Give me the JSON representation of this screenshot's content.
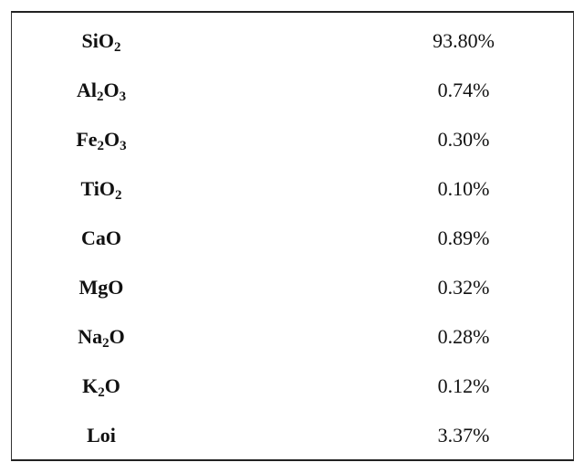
{
  "table": {
    "rows": [
      {
        "compound": {
          "base": "SiO",
          "sub": "2",
          "tail": ""
        },
        "value": "93.80%"
      },
      {
        "compound": {
          "base": "Al",
          "sub": "2",
          "tail": "O",
          "sub2": "3"
        },
        "value": "0.74%"
      },
      {
        "compound": {
          "base": "Fe",
          "sub": "2",
          "tail": "O",
          "sub2": "3"
        },
        "value": "0.30%"
      },
      {
        "compound": {
          "base": "TiO",
          "sub": "2",
          "tail": ""
        },
        "value": "0.10%"
      },
      {
        "compound": {
          "base": "CaO",
          "sub": "",
          "tail": ""
        },
        "value": "0.89%"
      },
      {
        "compound": {
          "base": "MgO",
          "sub": "",
          "tail": ""
        },
        "value": "0.32%"
      },
      {
        "compound": {
          "base": "Na",
          "sub": "2",
          "tail": "O"
        },
        "value": "0.28%"
      },
      {
        "compound": {
          "base": "K",
          "sub": "2",
          "tail": "O"
        },
        "value": "0.12%"
      },
      {
        "compound": {
          "base": "Loi",
          "sub": "",
          "tail": ""
        },
        "value": "3.37%"
      }
    ]
  }
}
